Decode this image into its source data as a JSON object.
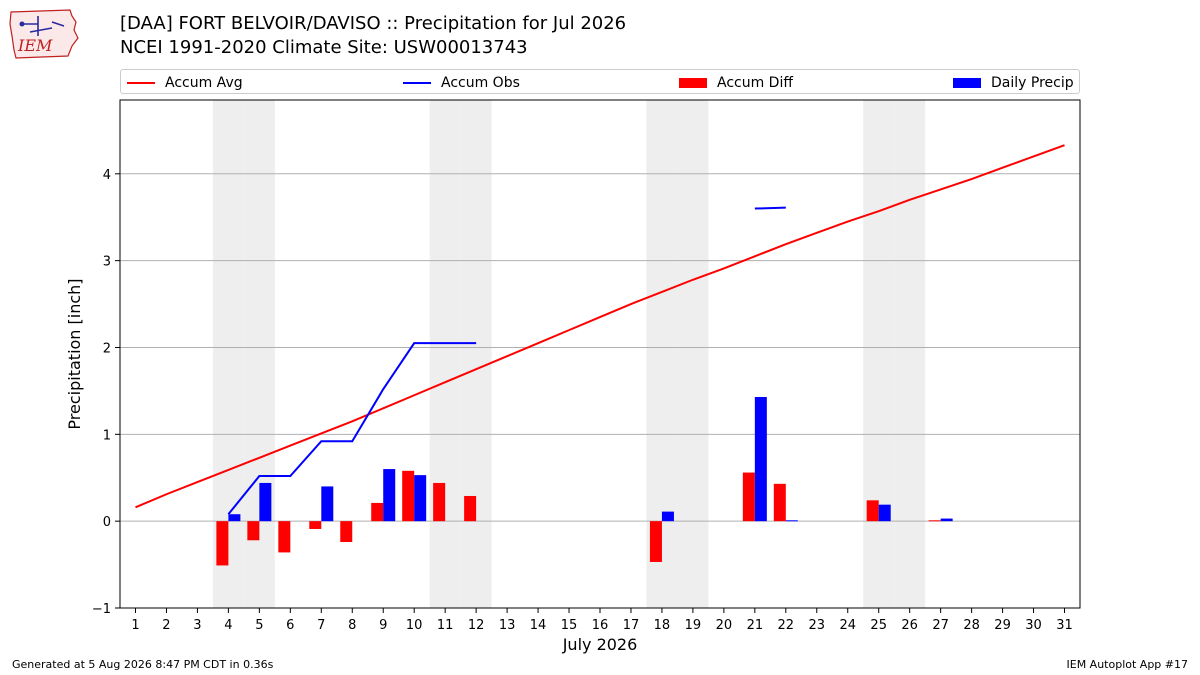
{
  "header": {
    "logo_text": "IEM",
    "title_line1": "[DAA] FORT BELVOIR/DAVISO :: Precipitation for Jul 2026",
    "title_line2": "NCEI 1991-2020 Climate Site: USW00013743"
  },
  "footer": {
    "generated": "Generated at 5 Aug 2026 8:47 PM CDT in 0.36s",
    "app": "IEM Autoplot App #17"
  },
  "colors": {
    "accum_avg": "#ff0000",
    "accum_obs": "#0000ff",
    "accum_diff": "#ff0000",
    "daily_precip": "#0000ff",
    "weekend_shade": "#eeeeee",
    "grid": "#b0b0b0"
  },
  "chart_data": {
    "type": "bar",
    "xlabel": "July 2026",
    "ylabel": "Precipitation [inch]",
    "ylim": [
      -1,
      4.85
    ],
    "yticks": [
      -1,
      0,
      1,
      2,
      3,
      4
    ],
    "grid": "horizontal",
    "legend_placement": "top",
    "legend": [
      "Accum Avg",
      "Accum Obs",
      "Accum Diff",
      "Daily Precip"
    ],
    "days": [
      1,
      2,
      3,
      4,
      5,
      6,
      7,
      8,
      9,
      10,
      11,
      12,
      13,
      14,
      15,
      16,
      17,
      18,
      19,
      20,
      21,
      22,
      23,
      24,
      25,
      26,
      27,
      28,
      29,
      30,
      31
    ],
    "weekend_days": [
      4,
      5,
      11,
      12,
      18,
      19,
      25,
      26
    ],
    "series": [
      {
        "name": "Accum Avg",
        "type": "line",
        "x": [
          1,
          2,
          3,
          4,
          5,
          6,
          7,
          8,
          9,
          10,
          11,
          12,
          13,
          14,
          15,
          16,
          17,
          18,
          19,
          20,
          21,
          22,
          23,
          24,
          25,
          26,
          27,
          28,
          29,
          30,
          31
        ],
        "values": [
          0.16,
          0.31,
          0.45,
          0.59,
          0.73,
          0.87,
          1.01,
          1.15,
          1.3,
          1.45,
          1.6,
          1.75,
          1.9,
          2.05,
          2.2,
          2.35,
          2.5,
          2.64,
          2.78,
          2.91,
          3.05,
          3.19,
          3.32,
          3.45,
          3.57,
          3.7,
          3.82,
          3.94,
          4.07,
          4.2,
          4.33
        ]
      },
      {
        "name": "Accum Obs",
        "type": "line",
        "segments": [
          {
            "x": [
              4,
              5,
              6,
              7,
              8,
              9,
              10,
              11,
              12
            ],
            "values": [
              0.08,
              0.52,
              0.52,
              0.92,
              0.92,
              1.52,
              2.05,
              2.05,
              2.05
            ]
          },
          {
            "x": [
              21,
              22
            ],
            "values": [
              3.6,
              3.61
            ]
          }
        ]
      },
      {
        "name": "Accum Diff",
        "type": "bar",
        "x": [
          4,
          5,
          6,
          7,
          8,
          9,
          10,
          11,
          12,
          18,
          21,
          22,
          25,
          27
        ],
        "values": [
          -0.51,
          -0.22,
          -0.36,
          -0.09,
          -0.24,
          0.21,
          0.58,
          0.44,
          0.29,
          -0.47,
          0.56,
          0.43,
          0.24,
          0.01
        ]
      },
      {
        "name": "Daily Precip",
        "type": "bar",
        "x": [
          4,
          5,
          7,
          9,
          10,
          18,
          21,
          22,
          25,
          27
        ],
        "values": [
          0.08,
          0.44,
          0.4,
          0.6,
          0.53,
          0.11,
          1.43,
          0.01,
          0.19,
          0.03
        ]
      }
    ]
  }
}
